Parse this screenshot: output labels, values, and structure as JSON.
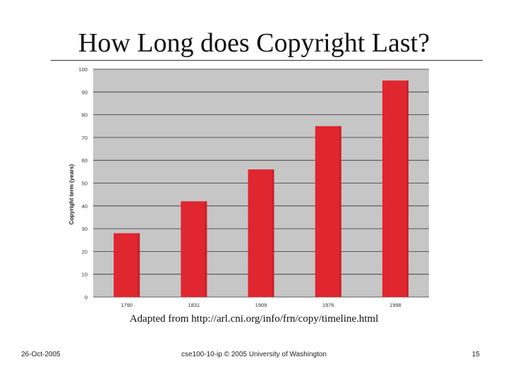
{
  "slide": {
    "title": "How Long does Copyright Last?",
    "source": "Adapted from http://arl.cni.org/info/frn/copy/timeline.html",
    "footer_left": "26-Oct-2005",
    "footer_center": "cse100-10-ip © 2005 University of Washington",
    "footer_right": "15"
  },
  "colors": {
    "bar": "#e0262f",
    "plot_bg": "#c6c6c6",
    "grid": "#333333"
  },
  "chart_data": {
    "type": "bar",
    "categories": [
      "1790",
      "1831",
      "1909",
      "1976",
      "1998"
    ],
    "values": [
      28,
      42,
      56,
      75,
      95
    ],
    "title": "",
    "xlabel": "",
    "ylabel": "Copyright term (years)",
    "ylim": [
      0,
      100
    ],
    "yticks": [
      0,
      10,
      20,
      30,
      40,
      50,
      60,
      70,
      80,
      90,
      100
    ],
    "grid": true,
    "legend": "none"
  }
}
